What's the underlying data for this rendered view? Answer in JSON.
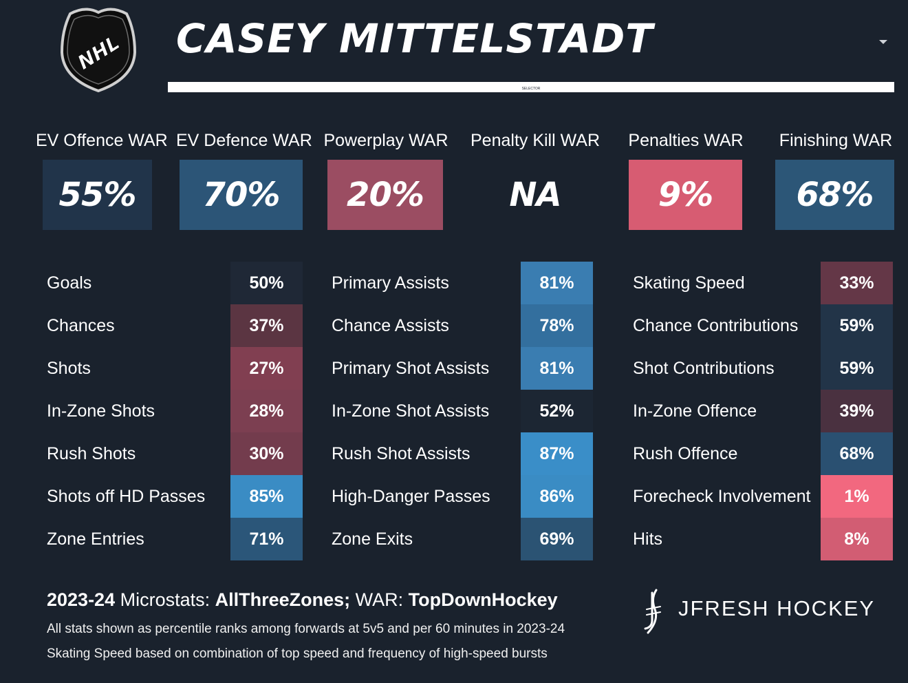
{
  "logo": {
    "text": "NHL"
  },
  "header": {
    "player_name": "CASEY MITTELSTADT",
    "selector_text": "SELECTOR"
  },
  "war": [
    {
      "label": "EV Offence WAR",
      "value": "55%",
      "color": "#21344a"
    },
    {
      "label": "EV Defence WAR",
      "value": "70%",
      "color": "#2c5577"
    },
    {
      "label": "Powerplay WAR",
      "value": "20%",
      "color": "#9b4d62"
    },
    {
      "label": "Penalty Kill WAR",
      "value": "NA",
      "color": "#1a222d"
    },
    {
      "label": "Penalties WAR",
      "value": "9%",
      "color": "#d75c72"
    },
    {
      "label": "Finishing WAR",
      "value": "68%",
      "color": "#2c5677"
    }
  ],
  "stats": {
    "col1": [
      {
        "label": "Goals",
        "value": "50%",
        "color": "#1f2836"
      },
      {
        "label": "Chances",
        "value": "37%",
        "color": "#5b3542"
      },
      {
        "label": "Shots",
        "value": "27%",
        "color": "#813f51"
      },
      {
        "label": "In-Zone Shots",
        "value": "28%",
        "color": "#7c3f51"
      },
      {
        "label": "Rush Shots",
        "value": "30%",
        "color": "#733c4d"
      },
      {
        "label": "Shots off HD Passes",
        "value": "85%",
        "color": "#3a8cc4"
      },
      {
        "label": "Zone Entries",
        "value": "71%",
        "color": "#2b5679"
      }
    ],
    "col2": [
      {
        "label": "Primary Assists",
        "value": "81%",
        "color": "#3a7db1"
      },
      {
        "label": "Chance Assists",
        "value": "78%",
        "color": "#336f9e"
      },
      {
        "label": "Primary Shot Assists",
        "value": "81%",
        "color": "#3a7db1"
      },
      {
        "label": "In-Zone Shot Assists",
        "value": "52%",
        "color": "#1c2633"
      },
      {
        "label": "Rush Shot Assists",
        "value": "87%",
        "color": "#3a8ec8"
      },
      {
        "label": "High-Danger Passes",
        "value": "86%",
        "color": "#3a8cc4"
      },
      {
        "label": "Zone Exits",
        "value": "69%",
        "color": "#2b5373"
      }
    ],
    "col3": [
      {
        "label": "Skating Speed",
        "value": "33%",
        "color": "#643747"
      },
      {
        "label": "Chance Contributions",
        "value": "59%",
        "color": "#223448"
      },
      {
        "label": "Shot Contributions",
        "value": "59%",
        "color": "#223448"
      },
      {
        "label": "In-Zone Offence",
        "value": "39%",
        "color": "#4a3140"
      },
      {
        "label": "Rush Offence",
        "value": "68%",
        "color": "#2a5071"
      },
      {
        "label": "Forecheck Involvement",
        "value": "1%",
        "color": "#f2687f"
      },
      {
        "label": "Hits",
        "value": "8%",
        "color": "#d25d73"
      }
    ]
  },
  "footer": {
    "season": "2023-24",
    "microstats_label": " Microstats: ",
    "microstats_source": "AllThreeZones;",
    "war_label": " WAR: ",
    "war_source": "TopDownHockey",
    "note1": "All stats shown as percentile ranks among forwards at 5v5 and per 60 minutes in 2023-24",
    "note2": "Skating Speed based on combination of top speed and frequency of high-speed bursts"
  },
  "brand": {
    "text": "JFRESH HOCKEY"
  }
}
